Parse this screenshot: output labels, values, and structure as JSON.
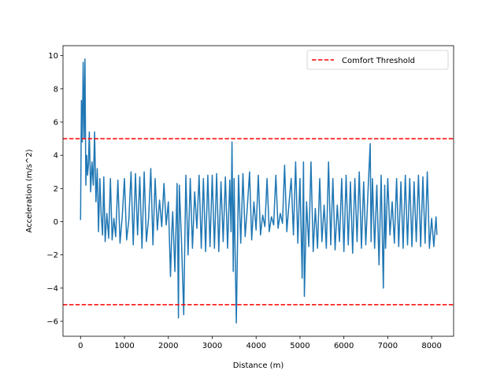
{
  "chart_data": {
    "type": "line",
    "title": "",
    "xlabel": "Distance (m)",
    "ylabel": "Acceleration (m/s^2)",
    "xlim": [
      -400,
      8500
    ],
    "ylim": [
      -6.9,
      10.6
    ],
    "xticks": [
      0,
      1000,
      2000,
      3000,
      4000,
      5000,
      6000,
      7000,
      8000
    ],
    "xtick_labels": [
      "0",
      "1000",
      "2000",
      "3000",
      "4000",
      "5000",
      "6000",
      "7000",
      "8000"
    ],
    "yticks": [
      -6,
      -4,
      -2,
      0,
      2,
      4,
      6,
      8,
      10
    ],
    "ytick_labels": [
      "−6",
      "−4",
      "−2",
      "0",
      "2",
      "4",
      "6",
      "8",
      "10"
    ],
    "grid": false,
    "legend_position": "top-right",
    "series": [
      {
        "name": "",
        "color": "#1f77b4",
        "x": [
          0,
          20,
          40,
          60,
          80,
          100,
          120,
          140,
          160,
          180,
          200,
          230,
          260,
          290,
          320,
          350,
          380,
          410,
          440,
          470,
          500,
          530,
          560,
          600,
          640,
          680,
          720,
          760,
          800,
          850,
          900,
          950,
          1000,
          1050,
          1100,
          1150,
          1200,
          1250,
          1300,
          1350,
          1400,
          1450,
          1500,
          1550,
          1600,
          1650,
          1700,
          1750,
          1800,
          1850,
          1900,
          1950,
          2000,
          2050,
          2080,
          2100,
          2150,
          2200,
          2230,
          2250,
          2300,
          2350,
          2400,
          2450,
          2500,
          2550,
          2600,
          2650,
          2700,
          2750,
          2800,
          2850,
          2900,
          2950,
          3000,
          3050,
          3100,
          3150,
          3200,
          3250,
          3300,
          3350,
          3400,
          3430,
          3450,
          3480,
          3500,
          3520,
          3550,
          3600,
          3650,
          3700,
          3750,
          3800,
          3850,
          3900,
          3950,
          4000,
          4050,
          4100,
          4150,
          4200,
          4250,
          4300,
          4350,
          4400,
          4450,
          4500,
          4550,
          4600,
          4650,
          4700,
          4750,
          4800,
          4850,
          4900,
          4950,
          5000,
          5050,
          5080,
          5100,
          5150,
          5200,
          5250,
          5300,
          5350,
          5400,
          5450,
          5500,
          5550,
          5600,
          5650,
          5700,
          5750,
          5800,
          5850,
          5900,
          5950,
          6000,
          6050,
          6100,
          6150,
          6200,
          6250,
          6300,
          6350,
          6400,
          6450,
          6500,
          6550,
          6600,
          6620,
          6650,
          6700,
          6750,
          6800,
          6850,
          6900,
          6930,
          6950,
          7000,
          7050,
          7100,
          7150,
          7200,
          7250,
          7300,
          7350,
          7400,
          7450,
          7500,
          7550,
          7600,
          7650,
          7700,
          7750,
          7800,
          7850,
          7900,
          7950,
          8000,
          8050,
          8100,
          8120
        ],
        "y": [
          0.1,
          7.3,
          4.8,
          9.6,
          5.0,
          9.8,
          2.2,
          4.0,
          2.8,
          3.5,
          5.4,
          1.8,
          3.6,
          2.2,
          5.4,
          1.2,
          3.2,
          -0.6,
          2.6,
          0.4,
          -0.8,
          2.7,
          -1.2,
          0.5,
          -1.0,
          2.6,
          -1.1,
          0.2,
          -0.9,
          2.5,
          -1.3,
          0.3,
          2.6,
          -1.1,
          0.1,
          3.0,
          -1.4,
          2.9,
          -0.8,
          2.7,
          -1.6,
          3.0,
          -1.2,
          0.2,
          3.2,
          -1.4,
          2.6,
          -0.5,
          1.3,
          -0.3,
          2.3,
          -0.2,
          1.2,
          -3.3,
          -0.5,
          0.6,
          -3.0,
          2.3,
          -5.8,
          2.2,
          -1.2,
          -5.6,
          2.8,
          -2.0,
          2.6,
          -1.6,
          1.8,
          -0.4,
          2.8,
          -1.6,
          2.6,
          -1.8,
          2.8,
          -1.5,
          2.8,
          -1.6,
          2.9,
          -1.8,
          2.4,
          -1.2,
          2.7,
          -1.6,
          2.5,
          -0.6,
          4.8,
          -3.0,
          2.6,
          -1.6,
          -6.1,
          2.8,
          -1.3,
          2.9,
          -0.9,
          0.9,
          3.0,
          -1.1,
          1.2,
          -0.5,
          2.8,
          -0.8,
          0.4,
          -0.3,
          2.6,
          -0.6,
          0.3,
          -0.2,
          2.8,
          -0.4,
          0.5,
          -0.1,
          3.4,
          -0.6,
          1.1,
          2.6,
          -0.8,
          3.6,
          -1.3,
          2.6,
          -3.4,
          3.6,
          -4.5,
          1.2,
          -1.5,
          3.6,
          -1.8,
          0.8,
          -1.6,
          2.6,
          -1.2,
          1.0,
          -1.6,
          3.6,
          -1.4,
          2.6,
          -1.7,
          1.0,
          -1.2,
          2.6,
          -1.8,
          2.8,
          -1.4,
          2.4,
          -1.9,
          2.6,
          -1.2,
          3.0,
          -1.6,
          2.4,
          -1.4,
          1.8,
          4.7,
          -1.2,
          2.6,
          -1.6,
          2.2,
          -2.6,
          2.8,
          -4.0,
          2.2,
          -1.6,
          2.6,
          -0.8,
          1.2,
          -1.3,
          2.6,
          -1.5,
          2.4,
          -1.6,
          2.8,
          -1.4,
          2.6,
          -1.5,
          2.4,
          -1.2,
          2.8,
          -1.5,
          2.7,
          -1.3,
          3.0,
          -1.6,
          0.2,
          -1.5,
          0.3,
          -0.8
        ]
      },
      {
        "name": "Comfort Threshold",
        "color": "#ff0000",
        "style": "dashed",
        "value": 5
      },
      {
        "name": "",
        "color": "#ff0000",
        "style": "dashed",
        "value": -5
      }
    ]
  }
}
